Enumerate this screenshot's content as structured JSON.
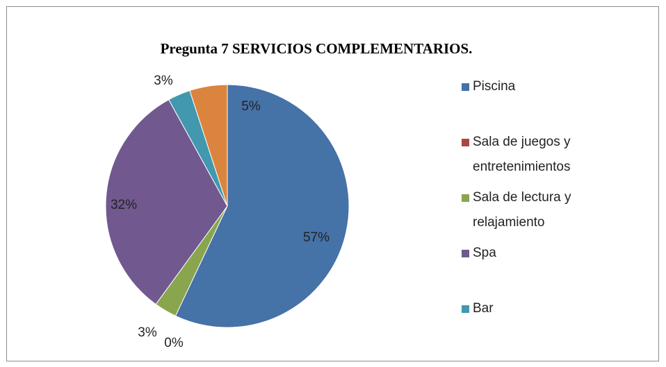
{
  "chart_data": {
    "type": "pie",
    "title": "Pregunta 7 SERVICIOS COMPLEMENTARIOS.",
    "categories": [
      "Piscina",
      "Sala de juegos y entretenimientos",
      "Sala de lectura y relajamiento",
      "Spa",
      "Bar",
      null
    ],
    "values": [
      57,
      0,
      3,
      32,
      3,
      5
    ],
    "value_labels": [
      "57%",
      "0%",
      "3%",
      "32%",
      "3%",
      "5%"
    ],
    "colors": [
      "#4572a7",
      "#aa4643",
      "#89a54e",
      "#71588f",
      "#4198af",
      "#db843d"
    ],
    "legend": "right"
  }
}
